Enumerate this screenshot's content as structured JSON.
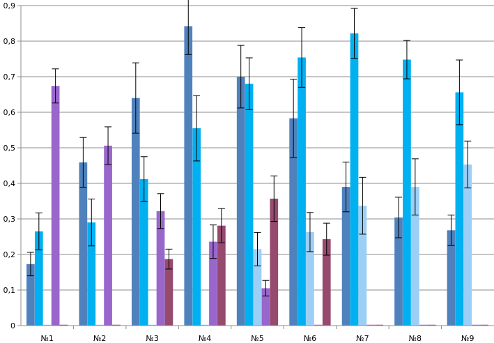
{
  "chart_data": {
    "type": "bar",
    "title": "",
    "xlabel": "",
    "ylabel": "",
    "ylim": [
      0,
      0.9
    ],
    "grid": true,
    "legend": "none",
    "categories": [
      "№1",
      "№2",
      "№3",
      "№4",
      "№5",
      "№6",
      "№7",
      "№8",
      "№9"
    ],
    "y_ticks": [
      "0",
      "0,1",
      "0,2",
      "0,3",
      "0,4",
      "0,5",
      "0,6",
      "0,7",
      "0,8",
      "0,9"
    ],
    "series": [
      {
        "color": "#4f81bd",
        "values": [
          0.173,
          0.459,
          0.64,
          0.842,
          0.7,
          0.583,
          0.39,
          0.304,
          0.268
        ],
        "errors": [
          0.033,
          0.07,
          0.099,
          0.08,
          0.088,
          0.11,
          0.07,
          0.057,
          0.043
        ]
      },
      {
        "color": "#00b0f0",
        "values": [
          0.265,
          0.29,
          0.412,
          0.555,
          0.68,
          0.754,
          0.822,
          0.748,
          0.656
        ],
        "errors": [
          0.052,
          0.066,
          0.063,
          0.092,
          0.073,
          0.084,
          0.07,
          0.054,
          0.091
        ]
      },
      {
        "color": "#9ccff5",
        "values": [
          0,
          0,
          0,
          0,
          0.215,
          0.263,
          0.337,
          0.39,
          0.453
        ],
        "errors": [
          0,
          0,
          0,
          0,
          0.047,
          0.055,
          0.08,
          0.079,
          0.066
        ]
      },
      {
        "color": "#9966cc",
        "values": [
          0.674,
          0.506,
          0.322,
          0.236,
          0.105,
          0,
          0,
          0,
          0
        ],
        "errors": [
          0.048,
          0.053,
          0.049,
          0.047,
          0.022,
          0,
          0,
          0,
          0
        ]
      },
      {
        "color": "#954a6e",
        "values": [
          0,
          0,
          0.187,
          0.281,
          0.357,
          0.243,
          0,
          0,
          0
        ],
        "errors": [
          0,
          0,
          0.028,
          0.048,
          0.064,
          0.045,
          0,
          0,
          0
        ]
      }
    ]
  }
}
